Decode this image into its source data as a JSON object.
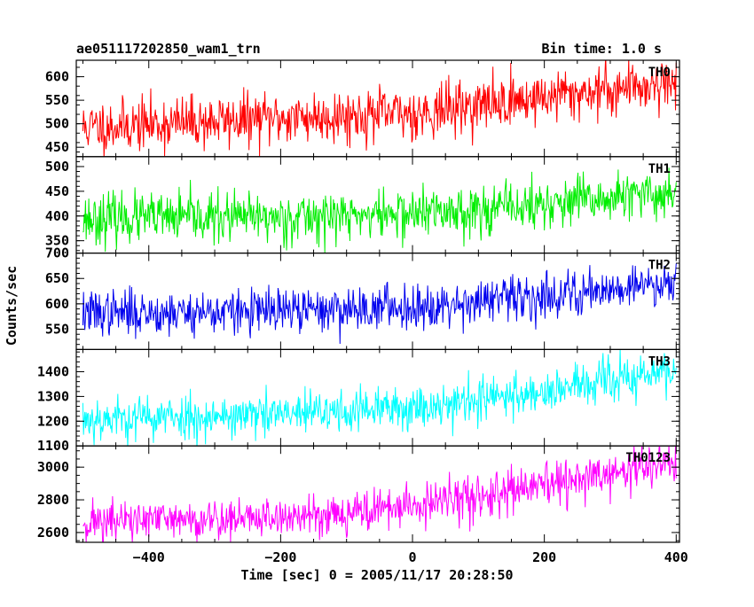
{
  "chart_data": {
    "type": "line",
    "title_left": "ae051117202850_wam1_trn",
    "title_right": "Bin time: 1.0 s",
    "xlabel": "Time [sec] 0 = 2005/11/17 20:28:50",
    "ylabel": "Counts/sec",
    "xlim": [
      -510,
      405
    ],
    "x_ticks": [
      -400,
      -200,
      0,
      200,
      400
    ],
    "x_tick_labels": [
      "−400",
      "−200",
      "0",
      "200",
      "400"
    ],
    "x_range": [
      -500,
      400
    ],
    "bin_time": 1.0,
    "grid": false,
    "panels": [
      {
        "name": "TH0",
        "color": "#ff0000",
        "ylim": [
          430,
          635
        ],
        "yticks": [
          450,
          500,
          550,
          600
        ],
        "trend": [
          [
            -500,
            492
          ],
          [
            -200,
            512
          ],
          [
            0,
            522
          ],
          [
            200,
            557
          ],
          [
            400,
            590
          ]
        ],
        "noise_std": 28,
        "seed": 11
      },
      {
        "name": "TH1",
        "color": "#00ee00",
        "ylim": [
          325,
          520
        ],
        "yticks": [
          350,
          400,
          450,
          500
        ],
        "trend": [
          [
            -500,
            395
          ],
          [
            -200,
            397
          ],
          [
            0,
            405
          ],
          [
            200,
            422
          ],
          [
            400,
            447
          ]
        ],
        "noise_std": 25,
        "seed": 23
      },
      {
        "name": "TH2",
        "color": "#0000ee",
        "ylim": [
          510,
          700
        ],
        "yticks": [
          550,
          600,
          650,
          700
        ],
        "trend": [
          [
            -500,
            582
          ],
          [
            -200,
            585
          ],
          [
            0,
            595
          ],
          [
            200,
            615
          ],
          [
            400,
            645
          ]
        ],
        "noise_std": 22,
        "seed": 37
      },
      {
        "name": "TH3",
        "color": "#00ffff",
        "ylim": [
          1100,
          1490
        ],
        "yticks": [
          1100,
          1200,
          1300,
          1400
        ],
        "trend": [
          [
            -500,
            1210
          ],
          [
            -200,
            1225
          ],
          [
            0,
            1255
          ],
          [
            200,
            1320
          ],
          [
            400,
            1405
          ]
        ],
        "noise_std": 45,
        "seed": 53
      },
      {
        "name": "TH0123",
        "color": "#ff00ff",
        "ylim": [
          2540,
          3130
        ],
        "yticks": [
          2600,
          2800,
          3000
        ],
        "trend": [
          [
            -500,
            2665
          ],
          [
            -200,
            2690
          ],
          [
            0,
            2760
          ],
          [
            200,
            2880
          ],
          [
            400,
            3035
          ]
        ],
        "noise_std": 65,
        "seed": 71
      }
    ]
  }
}
